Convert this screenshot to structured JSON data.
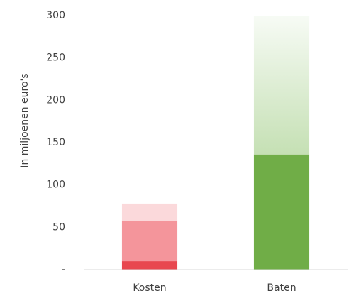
{
  "chart_data": {
    "type": "stacked_bar",
    "y_label": "In miljoenen euro's",
    "categories": [
      "Kosten",
      "Baten"
    ],
    "series": [
      {
        "color": "#e8474f",
        "values": [
          10,
          null
        ]
      },
      {
        "color": "#f4959b",
        "values": [
          48,
          null
        ]
      },
      {
        "color": "#fbd9db",
        "values": [
          20,
          null
        ]
      },
      {
        "color": "#70ad47",
        "values": [
          null,
          136
        ]
      },
      {
        "color": "#c5e0b4",
        "color_end": "#f7fbf5",
        "values": [
          null,
          164
        ]
      }
    ],
    "ylim": [
      0,
      300
    ],
    "yticks": [
      {
        "value": 0,
        "label": "-"
      },
      50,
      100,
      150,
      200,
      250,
      300
    ],
    "grid": false
  }
}
